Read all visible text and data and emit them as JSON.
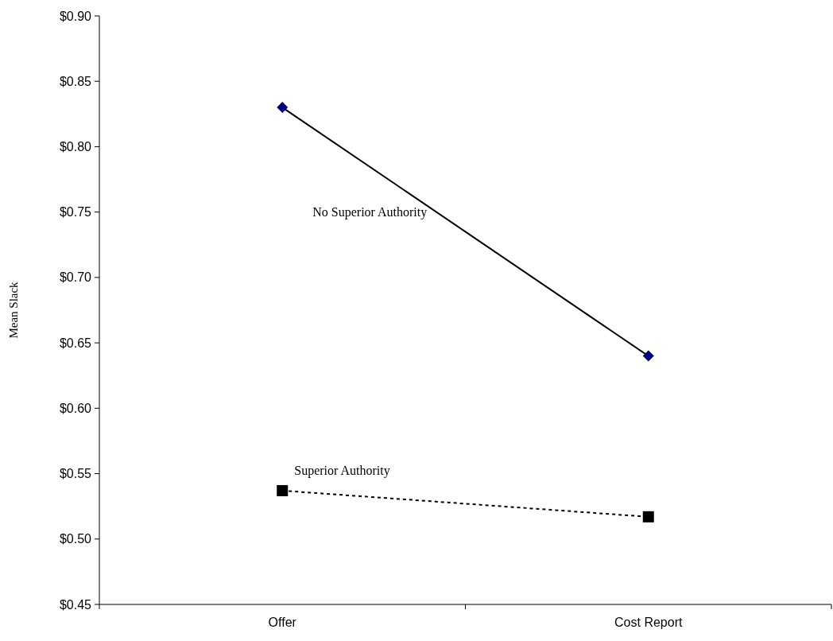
{
  "chart_data": {
    "type": "line",
    "ylabel": "Mean Slack",
    "categories": [
      "Offer",
      "Cost Report"
    ],
    "series": [
      {
        "name": "No Superior Authority",
        "color": "#000080",
        "values": [
          0.83,
          0.64
        ],
        "marker": "diamond",
        "line_style": "solid"
      },
      {
        "name": "Superior Authority",
        "color": "#000000",
        "values": [
          0.537,
          0.517
        ],
        "marker": "square",
        "line_style": "dotted"
      }
    ],
    "ylim": [
      0.45,
      0.9
    ],
    "yticks": [
      {
        "value": 0.45,
        "label": "$0.45"
      },
      {
        "value": 0.5,
        "label": "$0.50"
      },
      {
        "value": 0.55,
        "label": "$0.55"
      },
      {
        "value": 0.6,
        "label": "$0.60"
      },
      {
        "value": 0.65,
        "label": "$0.65"
      },
      {
        "value": 0.7,
        "label": "$0.70"
      },
      {
        "value": 0.75,
        "label": "$0.75"
      },
      {
        "value": 0.8,
        "label": "$0.80"
      },
      {
        "value": 0.85,
        "label": "$0.85"
      },
      {
        "value": 0.9,
        "label": "$0.90"
      }
    ],
    "grid": false
  }
}
